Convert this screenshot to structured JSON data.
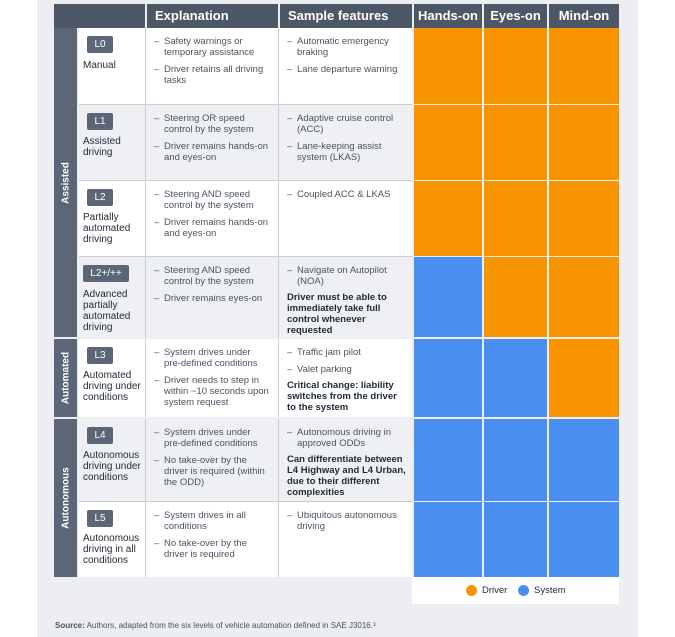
{
  "header": {
    "explanation": "Explanation",
    "sample_features": "Sample features",
    "hands_on": "Hands-on",
    "eyes_on": "Eyes-on",
    "mind_on": "Mind-on"
  },
  "stages": {
    "assisted": "Assisted",
    "automated": "Automated",
    "autonomous": "Autonomous"
  },
  "levels": [
    {
      "code": "L0",
      "name": "Manual",
      "explanation": [
        "Safety warnings or temporary assistance",
        "Driver retains all driving tasks"
      ],
      "features": [
        "Automatic emergency braking",
        "Lane departure warning"
      ],
      "note": "",
      "hands_on": "Driver",
      "eyes_on": "Driver",
      "mind_on": "Driver"
    },
    {
      "code": "L1",
      "name": "Assisted driving",
      "explanation": [
        "Steering OR speed control by the system",
        "Driver remains hands-on and eyes-on"
      ],
      "features": [
        "Adaptive cruise control (ACC)",
        "Lane-keeping assist system (LKAS)"
      ],
      "note": "",
      "hands_on": "Driver",
      "eyes_on": "Driver",
      "mind_on": "Driver"
    },
    {
      "code": "L2",
      "name": "Partially automated driving",
      "explanation": [
        "Steering AND speed control by the system",
        "Driver remains hands-on and eyes-on"
      ],
      "features": [
        "Coupled ACC & LKAS"
      ],
      "note": "",
      "hands_on": "Driver",
      "eyes_on": "Driver",
      "mind_on": "Driver"
    },
    {
      "code": "L2+/++",
      "name": "Advanced partially automated driving",
      "explanation": [
        "Steering AND speed control by the system",
        "Driver remains eyes-on"
      ],
      "features": [
        "Navigate on Autopilot (NOA)"
      ],
      "note": "Driver must be able to immediately take full control whenever requested",
      "hands_on": "System",
      "eyes_on": "Driver",
      "mind_on": "Driver"
    },
    {
      "code": "L3",
      "name": "Automated driving under conditions",
      "explanation": [
        "System drives under pre-defined conditions",
        "Driver needs to step in within ~10 seconds upon system request"
      ],
      "features": [
        "Traffic jam pilot",
        "Valet parking"
      ],
      "note": "Critical change: liability switches from the driver to the system",
      "hands_on": "System",
      "eyes_on": "System",
      "mind_on": "Driver"
    },
    {
      "code": "L4",
      "name": "Autonomous driving under conditions",
      "explanation": [
        "System drives under pre-defined conditions",
        "No take-over by the driver is required (within the ODD)"
      ],
      "features": [
        "Autonomous driving in approved ODDs"
      ],
      "note": "Can differentiate between L4 Highway and L4 Urban, due to their different complexities",
      "hands_on": "System",
      "eyes_on": "System",
      "mind_on": "System"
    },
    {
      "code": "L5",
      "name": "Autonomous driving in all conditions",
      "explanation": [
        "System drives in all conditions",
        "No take-over by the driver is required"
      ],
      "features": [
        "Ubiquitous autonomous driving"
      ],
      "note": "",
      "hands_on": "System",
      "eyes_on": "System",
      "mind_on": "System"
    }
  ],
  "legend": {
    "driver": "Driver",
    "system": "System"
  },
  "colors": {
    "driver": "#f79400",
    "system": "#4a8ff0",
    "header": "#4d5766"
  },
  "source": {
    "label": "Source:",
    "text": "Authors, adapted from the six levels of vehicle automation defined in SAE J3016.³"
  }
}
